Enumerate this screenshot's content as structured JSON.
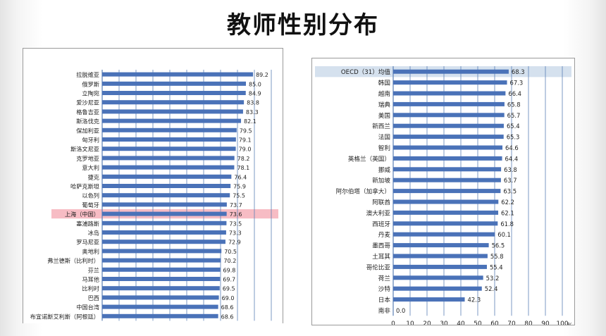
{
  "title": "教师性别分布",
  "colors": {
    "bar": "#4a72b8",
    "grid": "#5b7fb5",
    "highlight_left": "#f7bcc4",
    "highlight_right": "#d5e1ee",
    "text": "#222222"
  },
  "chart_data": [
    {
      "type": "bar",
      "orientation": "horizontal",
      "title": "",
      "xlabel": "",
      "ylabel": "",
      "xlim": [
        0,
        100
      ],
      "grid": true,
      "highlighted_category": "上海（中国）",
      "categories": [
        "拉脱维亚",
        "俄罗斯",
        "立陶宛",
        "爱沙尼亚",
        "格鲁吉亚",
        "斯洛伐克",
        "保加利亚",
        "匈牙利",
        "斯洛文尼亚",
        "克罗地亚",
        "意大利",
        "捷克",
        "哈萨克斯坦",
        "以色列",
        "葡萄牙",
        "上海（中国）",
        "塞浦路斯",
        "冰岛",
        "罗马尼亚",
        "奥地利",
        "弗兰德斯（比利时）",
        "芬兰",
        "马耳他",
        "比利时",
        "巴西",
        "中国台湾",
        "布宜诺斯艾利斯（阿根廷）"
      ],
      "values": [
        89.2,
        85.0,
        84.9,
        83.8,
        83.3,
        82.1,
        79.5,
        79.1,
        79.0,
        78.2,
        78.1,
        76.4,
        75.9,
        75.5,
        73.7,
        73.6,
        73.5,
        73.3,
        72.9,
        70.5,
        70.2,
        69.8,
        69.7,
        69.5,
        69.0,
        68.6,
        68.6
      ],
      "value_labels": [
        "89.2",
        "85.0",
        "84.9",
        "83.8",
        "83.3",
        "82.1",
        "79.5",
        "79.1",
        "79.0",
        "78.2",
        "78.1",
        "76.4",
        "75.9",
        "75.5",
        "73.7",
        "73.6",
        "73.5",
        "73.3",
        "72.9",
        "70.5",
        "70.2",
        "69.8",
        "69.7",
        "69.5",
        "69.0",
        "68.6",
        "68.6"
      ]
    },
    {
      "type": "bar",
      "orientation": "horizontal",
      "title": "",
      "xlabel": "%",
      "ylabel": "",
      "xlim": [
        0,
        100
      ],
      "xticks": [
        "0",
        "10",
        "20",
        "30",
        "40",
        "50",
        "60",
        "70",
        "80",
        "90",
        "100"
      ],
      "grid": true,
      "highlighted_category": "OECD（31）均值",
      "categories": [
        "OECD（31）均值",
        "韩国",
        "越南",
        "瑞典",
        "美国",
        "新西兰",
        "法国",
        "智利",
        "英格兰（英国）",
        "挪威",
        "新加坡",
        "阿尔伯塔（加拿大）",
        "阿联酋",
        "澳大利亚",
        "西班牙",
        "丹麦",
        "墨西哥",
        "土耳其",
        "哥伦比亚",
        "荷兰",
        "沙特",
        "日本",
        "南非"
      ],
      "values": [
        68.3,
        67.3,
        66.4,
        65.8,
        65.7,
        65.4,
        65.3,
        64.6,
        64.4,
        63.8,
        63.7,
        63.5,
        62.2,
        62.1,
        61.8,
        60.1,
        56.5,
        55.8,
        55.4,
        53.2,
        52.4,
        42.3,
        0.0
      ],
      "value_labels": [
        "68.3",
        "67.3",
        "66.4",
        "65.8",
        "65.7",
        "65.4",
        "65.3",
        "64.6",
        "64.4",
        "63.8",
        "63.7",
        "63.5",
        "62.2",
        "62.1",
        "61.8",
        "60.1",
        "56.5",
        "55.8",
        "55.4",
        "53.2",
        "52.4",
        "42.3",
        "0.0"
      ]
    }
  ]
}
